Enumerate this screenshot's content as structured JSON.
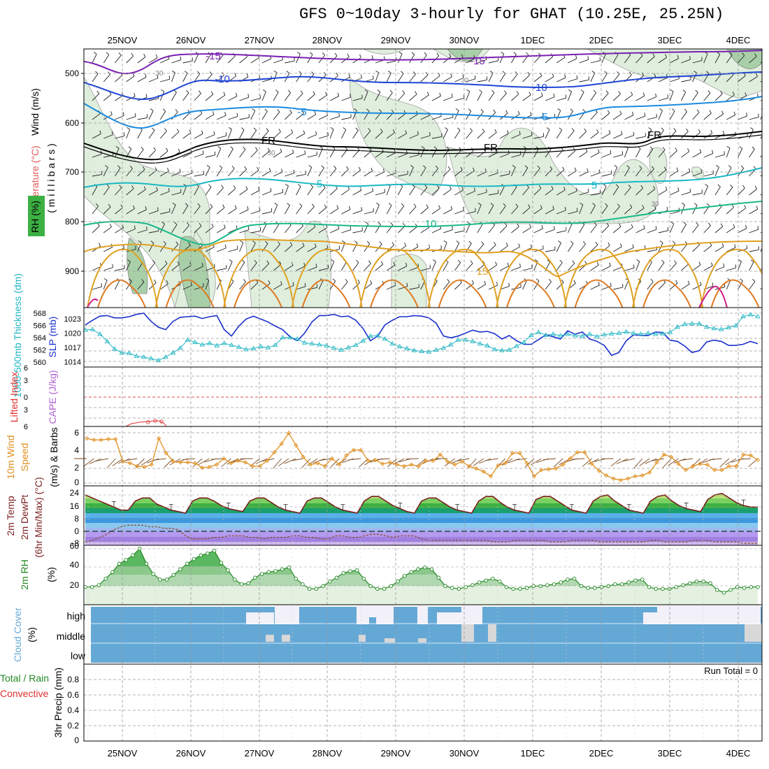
{
  "title": "GFS 0~10day 3-hourly for GHAT (10.25E, 25.25N)",
  "dates": [
    "25NOV",
    "26NOV",
    "27NOV",
    "28NOV",
    "29NOV",
    "30NOV",
    "1DEC",
    "2DEC",
    "3DEC",
    "4DEC"
  ],
  "colors": {
    "grid": "#9a9a9a",
    "rh_light": "#dfeedd",
    "rh_mid": "#a9cfa8",
    "rh_dark": "#7ea47e",
    "t_m15": "#7a1fb3",
    "t_m10": "#1f45d6",
    "t_m5": "#1a8ae0",
    "t_fr": "#000000",
    "t_5": "#1ab8c4",
    "t_10": "#1ab88a",
    "t_15": "#e0a020",
    "t_20": "#e07a20",
    "t_25": "#d01a8a",
    "thickness": "#1a30cc",
    "slp": "#22b6c4",
    "lifted": "#e03030",
    "cape": "#b060d0",
    "wind10": "#e09020",
    "barb10": "#7a4a20",
    "temp_line": "#7a1f1f",
    "dewpt": "#8a5030",
    "rh2m": "#228822",
    "cloud_blue": "#64a8d6",
    "cloud_white": "#f2f0f8",
    "cloud_gray": "#d8d8d8"
  },
  "panels": {
    "sounding": {
      "ylabel_wind": "Wind (m/s)",
      "ylabel_temp": "Temperature (°C)",
      "ylabel_mb": "( m i l l i b a r s )",
      "ylabel_rh": "RH (%)",
      "yticks": [
        "500",
        "600",
        "700",
        "800",
        "900"
      ],
      "contour_labels": [
        "-15",
        "-15",
        "-10",
        "-10",
        "-5",
        "-5",
        "FR",
        "FR",
        "FR",
        "5",
        "5",
        "10",
        "15"
      ],
      "rh_labels": [
        "30",
        "30",
        "30",
        "30"
      ]
    },
    "thickness": {
      "ylabel_left": "1000-500mb\nThickness (dm)",
      "ylabel_right": "SLP (mb)",
      "ticks_left": [
        "568",
        "566",
        "564",
        "562",
        "560"
      ],
      "ticks_right": [
        "1023",
        "1020",
        "1017",
        "1014"
      ]
    },
    "cape": {
      "ylabel_left": "Lifted Index",
      "ylabel_right": "CAPE (J/kg)",
      "ticks": [
        "6",
        "3",
        "0",
        "3",
        "6"
      ]
    },
    "wind10": {
      "ylabel_1": "10m Wind",
      "ylabel_2": "Speed",
      "ylabel_3": "(m/s) & Barbs",
      "ticks": [
        "6",
        "4",
        "2",
        "0"
      ]
    },
    "temp2m": {
      "ylabel_1": "2m Temp",
      "ylabel_2": "2m DewPt",
      "ylabel_3": "(6hr Min/Max) (°C)",
      "ticks": [
        "24",
        "16",
        "8",
        "0",
        "-8"
      ]
    },
    "rh2m": {
      "ylabel_1": "2m RH",
      "ylabel_2": "(%)",
      "ticks": [
        "60",
        "40",
        "20"
      ]
    },
    "cloud": {
      "ylabel_1": "Cloud Cover",
      "ylabel_2": "(%)",
      "levels": [
        "high",
        "middle",
        "low"
      ]
    },
    "precip": {
      "ylabel_1": "Total / Rain",
      "ylabel_2": "Convective",
      "ylabel_3": "3hr Precip (mm)",
      "ticks": [
        "0.8",
        "0.6",
        "0.4",
        "0.2",
        "0"
      ],
      "run_total": "Run Total = 0"
    }
  },
  "chart_data": [
    {
      "type": "line",
      "name": "thickness_slp",
      "series": [
        {
          "name": "1000-500mb Thickness (dm)",
          "values": [
            566.2,
            567.0,
            567.7,
            567.8,
            567.4,
            567.4,
            567.6,
            568.0,
            568.2,
            566.8,
            565.8,
            565.4,
            566.8,
            567.5,
            567.6,
            567.7,
            567.3,
            567.6,
            567.8,
            565.4,
            564.3,
            566.0,
            567.2,
            567.7,
            567.2,
            566.7,
            566.0,
            565.4,
            564.2,
            563.5,
            564.8,
            566.7,
            567.8,
            567.8,
            568.0,
            567.6,
            567.7,
            567.0,
            565.6,
            563.5,
            564.3,
            566.2,
            567.0,
            567.6,
            567.6,
            567.8,
            567.7,
            567.4,
            566.5,
            564.3,
            564.0,
            564.3,
            564.8,
            565.3,
            565.0,
            565.1,
            564.7,
            563.8,
            564.4,
            563.5,
            562.9,
            562.9,
            563.7,
            564.5,
            564.2,
            563.8,
            565.2,
            564.6,
            565.0,
            563.8,
            563.4,
            562.7,
            561.0,
            561.5,
            563.5,
            564.5,
            564.4,
            564.4,
            565.0,
            564.9,
            563.6,
            563.4,
            562.6,
            561.5,
            561.8,
            563.3,
            563.6,
            563.4,
            562.7,
            562.7,
            562.9,
            563.4,
            563.0
          ]
        },
        {
          "name": "SLP (mb)",
          "values": [
            1020.7,
            1020.8,
            1019.8,
            1018.3,
            1016.7,
            1015.9,
            1015.8,
            1015.2,
            1015.0,
            1014.7,
            1014.3,
            1015.0,
            1015.9,
            1016.9,
            1018.6,
            1018.1,
            1017.6,
            1017.9,
            1017.4,
            1017.9,
            1017.5,
            1017.1,
            1016.6,
            1016.8,
            1017.2,
            1017.0,
            1017.5,
            1019.1,
            1019.1,
            1018.8,
            1018.0,
            1017.8,
            1017.6,
            1017.4,
            1016.9,
            1016.5,
            1017.0,
            1017.5,
            1018.4,
            1019.4,
            1019.5,
            1018.8,
            1017.8,
            1017.2,
            1016.8,
            1016.4,
            1016.2,
            1016.1,
            1016.5,
            1016.9,
            1017.6,
            1018.6,
            1018.6,
            1018.3,
            1017.8,
            1017.4,
            1016.6,
            1016.4,
            1016.5,
            1017.3,
            1018.1,
            1019.6,
            1020.2,
            1019.6,
            1019.8,
            1019.5,
            1019.8,
            1019.5,
            1019.4,
            1019.8,
            1019.3,
            1019.7,
            1019.9,
            1020.0,
            1020.3,
            1020.0,
            1019.8,
            1020.0,
            1019.8,
            1019.9,
            1020.2,
            1021.3,
            1021.9,
            1022.0,
            1022.0,
            1021.3,
            1021.0,
            1020.8,
            1021.2,
            1021.6,
            1023.5,
            1023.9,
            1023.5
          ]
        }
      ]
    },
    {
      "type": "line",
      "name": "wind10m",
      "series": [
        {
          "name": "10m Wind Speed (m/s)",
          "values": [
            5.6,
            5.4,
            5.4,
            5.5,
            5.5,
            2.6,
            2.4,
            2.0,
            1.9,
            2.2,
            5.6,
            3.7,
            2.6,
            2.5,
            2.5,
            2.4,
            1.8,
            1.9,
            2.2,
            3.0,
            2.4,
            2.7,
            2.5,
            2.0,
            2.0,
            2.7,
            3.8,
            4.9,
            6.3,
            4.7,
            3.2,
            2.2,
            2.4,
            2.0,
            3.0,
            2.2,
            3.4,
            4.1,
            4.1,
            2.7,
            2.8,
            2.3,
            2.5,
            2.2,
            2.0,
            2.2,
            2.0,
            2.7,
            2.7,
            3.5,
            2.6,
            2.2,
            2.6,
            2.0,
            1.7,
            1.3,
            0.7,
            2.1,
            2.4,
            3.7,
            3.7,
            2.4,
            0.7,
            1.5,
            1.6,
            1.7,
            2.2,
            3.0,
            3.8,
            3.8,
            2.3,
            1.4,
            0.8,
            0.4,
            0.2,
            0.4,
            0.7,
            0.8,
            1.2,
            2.5,
            3.5,
            3.2,
            2.3,
            1.5,
            2.0,
            2.3,
            2.2,
            1.5,
            1.5,
            2.0,
            2.0,
            3.5,
            3.4,
            2.8
          ]
        }
      ]
    },
    {
      "type": "area",
      "name": "rh2m",
      "series": [
        {
          "name": "2m RH (%)",
          "values": [
            19,
            19,
            21,
            28,
            35,
            44,
            48,
            53,
            60,
            44,
            33,
            27,
            27,
            32,
            38,
            44,
            49,
            53,
            55,
            58,
            45,
            37,
            27,
            22,
            23,
            29,
            33,
            35,
            36,
            38,
            40,
            28,
            22,
            17,
            17,
            20,
            25,
            29,
            34,
            36,
            37,
            28,
            20,
            17,
            17,
            20,
            25,
            31,
            35,
            38,
            40,
            38,
            29,
            20,
            18,
            17,
            19,
            21,
            24,
            26,
            28,
            25,
            19,
            17,
            17,
            18,
            20,
            20,
            21,
            22,
            24,
            27,
            28,
            20,
            18,
            18,
            19,
            20,
            22,
            22,
            24,
            26,
            27,
            19,
            17,
            17,
            17,
            19,
            21,
            23,
            25,
            25,
            23,
            16,
            13,
            16,
            19,
            18,
            19,
            19
          ]
        }
      ]
    },
    {
      "type": "line",
      "name": "temp2m",
      "series": [
        {
          "name": "2m Temp (°C)",
          "values": [
            24,
            22,
            20,
            18,
            16,
            14,
            14,
            20,
            22,
            22,
            18,
            16,
            14,
            13,
            12,
            20,
            22,
            22,
            20,
            17,
            15,
            14,
            13,
            20,
            22,
            22,
            19,
            16,
            14,
            13,
            12,
            20,
            22,
            22,
            19,
            16,
            14,
            13,
            12,
            20,
            23,
            23,
            20,
            17,
            15,
            13,
            12,
            20,
            22,
            22,
            19,
            16,
            14,
            13,
            12,
            20,
            23,
            23,
            19,
            16,
            14,
            13,
            12,
            21,
            23,
            23,
            20,
            17,
            14,
            13,
            12,
            20,
            23,
            24,
            20,
            17,
            14,
            13,
            12,
            20,
            23,
            24,
            20,
            17,
            15,
            14,
            13,
            21,
            24,
            25,
            22,
            19,
            17,
            16,
            16
          ]
        },
        {
          "name": "2m DewPt (°C)",
          "values": [
            -7,
            -6,
            -4,
            -2,
            1,
            3,
            4,
            4,
            4,
            3,
            3,
            2,
            2,
            1,
            -3,
            -5,
            -5,
            -5,
            -4,
            -4,
            -3,
            -3,
            -3,
            -4,
            -4,
            -5,
            -4,
            -4,
            -4,
            -3,
            -3,
            -4,
            -4,
            -5,
            -5,
            -3,
            -3,
            -4,
            -4,
            -3,
            -2,
            -2,
            -3,
            -4,
            -3,
            -3,
            -3,
            -5,
            -6,
            -6,
            -6,
            -6,
            -6,
            -6,
            -6,
            -6,
            -6,
            -7,
            -7,
            -7,
            -6,
            -6,
            -6,
            -6,
            -6,
            -7,
            -7,
            -7,
            -6,
            -6,
            -6,
            -6,
            -7,
            -7,
            -7,
            -7,
            -7,
            -7,
            -7,
            -6,
            -6,
            -7,
            -7,
            -7,
            -7,
            -6,
            -6,
            -6,
            -7,
            -7,
            -7,
            -7,
            -8,
            -8,
            -8
          ]
        }
      ]
    }
  ]
}
